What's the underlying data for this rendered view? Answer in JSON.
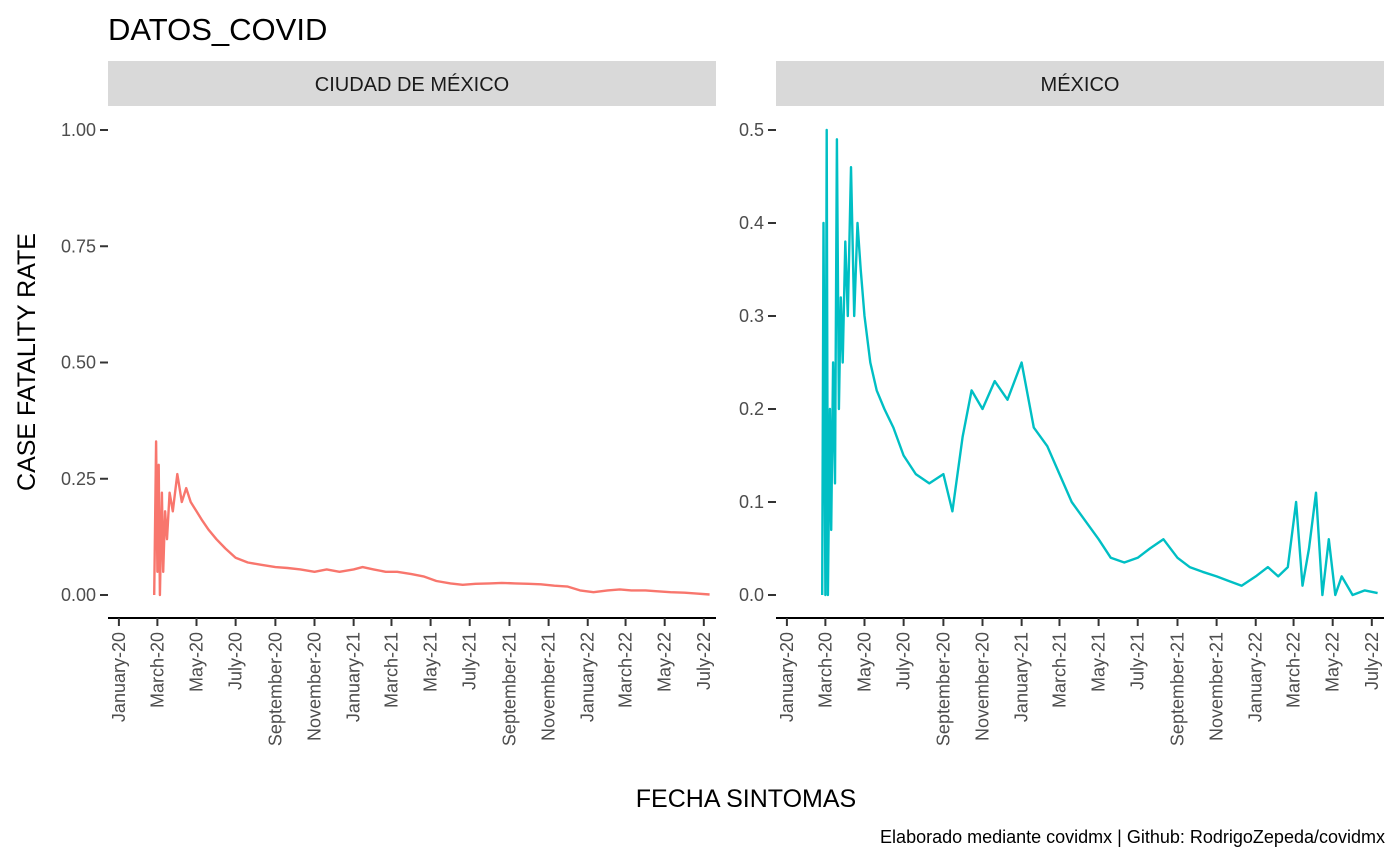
{
  "title": "DATOS_COVID",
  "caption": "Elaborado mediante covidmx | Github: RodrigoZepeda/covidmx",
  "chart_data": {
    "type": "line",
    "title": "DATOS_COVID",
    "xlabel": "FECHA SINTOMAS",
    "ylabel": "CASE FATALITY RATE",
    "grid": false,
    "legend": "none",
    "x_ticks": [
      "January-20",
      "March-20",
      "May-20",
      "July-20",
      "September-20",
      "November-20",
      "January-21",
      "March-21",
      "May-21",
      "July-21",
      "September-21",
      "November-21",
      "January-22",
      "March-22",
      "May-22",
      "July-22"
    ],
    "xlim": [
      "2019-12-15",
      "2022-07-20"
    ],
    "panels": [
      {
        "strip": "CIUDAD DE MÉXICO",
        "color": "#F8766D",
        "ylim": [
          0,
          1.0
        ],
        "y_ticks": [
          0,
          0.25,
          0.5,
          0.75,
          1.0
        ],
        "y_tick_labels": [
          "0.00",
          "0.25",
          "0.50",
          "0.75",
          "1.00"
        ],
        "series": {
          "x": [
            "2020-02-25",
            "2020-02-28",
            "2020-03-01",
            "2020-03-03",
            "2020-03-05",
            "2020-03-08",
            "2020-03-10",
            "2020-03-13",
            "2020-03-16",
            "2020-03-20",
            "2020-03-25",
            "2020-04-01",
            "2020-04-08",
            "2020-04-15",
            "2020-04-22",
            "2020-05-01",
            "2020-05-10",
            "2020-05-20",
            "2020-06-01",
            "2020-06-15",
            "2020-07-01",
            "2020-07-20",
            "2020-08-10",
            "2020-09-01",
            "2020-09-20",
            "2020-10-10",
            "2020-11-01",
            "2020-11-20",
            "2020-12-10",
            "2021-01-01",
            "2021-01-15",
            "2021-02-01",
            "2021-02-20",
            "2021-03-10",
            "2021-04-01",
            "2021-04-20",
            "2021-05-10",
            "2021-06-01",
            "2021-06-20",
            "2021-07-10",
            "2021-08-01",
            "2021-08-20",
            "2021-09-10",
            "2021-10-01",
            "2021-10-20",
            "2021-11-10",
            "2021-12-01",
            "2021-12-20",
            "2022-01-10",
            "2022-02-01",
            "2022-02-20",
            "2022-03-10",
            "2022-04-01",
            "2022-04-20",
            "2022-05-10",
            "2022-06-01",
            "2022-06-20",
            "2022-07-10"
          ],
          "y": [
            0.0,
            0.33,
            0.05,
            0.28,
            0.0,
            0.22,
            0.05,
            0.18,
            0.12,
            0.22,
            0.18,
            0.26,
            0.2,
            0.23,
            0.2,
            0.18,
            0.16,
            0.14,
            0.12,
            0.1,
            0.08,
            0.07,
            0.065,
            0.06,
            0.058,
            0.055,
            0.05,
            0.055,
            0.05,
            0.055,
            0.06,
            0.055,
            0.05,
            0.05,
            0.045,
            0.04,
            0.03,
            0.025,
            0.022,
            0.024,
            0.025,
            0.026,
            0.025,
            0.024,
            0.023,
            0.02,
            0.018,
            0.01,
            0.006,
            0.01,
            0.012,
            0.01,
            0.01,
            0.008,
            0.006,
            0.005,
            0.003,
            0.001
          ]
        }
      },
      {
        "strip": "MÉXICO",
        "color": "#00BFC4",
        "ylim": [
          0,
          0.5
        ],
        "y_ticks": [
          0,
          0.1,
          0.2,
          0.3,
          0.4,
          0.5
        ],
        "y_tick_labels": [
          "0.0",
          "0.1",
          "0.2",
          "0.3",
          "0.4",
          "0.5"
        ],
        "series": {
          "x": [
            "2020-02-25",
            "2020-02-27",
            "2020-03-01",
            "2020-03-03",
            "2020-03-05",
            "2020-03-08",
            "2020-03-10",
            "2020-03-13",
            "2020-03-16",
            "2020-03-19",
            "2020-03-22",
            "2020-03-25",
            "2020-03-28",
            "2020-04-01",
            "2020-04-05",
            "2020-04-10",
            "2020-04-15",
            "2020-04-20",
            "2020-04-25",
            "2020-05-01",
            "2020-05-10",
            "2020-05-20",
            "2020-06-01",
            "2020-06-15",
            "2020-07-01",
            "2020-07-20",
            "2020-08-10",
            "2020-09-01",
            "2020-09-15",
            "2020-10-01",
            "2020-10-15",
            "2020-11-01",
            "2020-11-20",
            "2020-12-10",
            "2021-01-01",
            "2021-01-20",
            "2021-02-10",
            "2021-03-01",
            "2021-03-20",
            "2021-04-10",
            "2021-05-01",
            "2021-05-20",
            "2021-06-10",
            "2021-07-01",
            "2021-07-20",
            "2021-08-10",
            "2021-09-01",
            "2021-09-20",
            "2021-10-10",
            "2021-11-01",
            "2021-11-20",
            "2021-12-10",
            "2022-01-01",
            "2022-01-20",
            "2022-02-05",
            "2022-02-20",
            "2022-03-05",
            "2022-03-15",
            "2022-03-25",
            "2022-04-05",
            "2022-04-15",
            "2022-04-25",
            "2022-05-05",
            "2022-05-15",
            "2022-06-01",
            "2022-06-20",
            "2022-07-10"
          ],
          "y": [
            0.0,
            0.4,
            0.0,
            0.5,
            0.0,
            0.2,
            0.07,
            0.25,
            0.12,
            0.49,
            0.2,
            0.32,
            0.25,
            0.38,
            0.3,
            0.46,
            0.3,
            0.4,
            0.35,
            0.3,
            0.25,
            0.22,
            0.2,
            0.18,
            0.15,
            0.13,
            0.12,
            0.13,
            0.09,
            0.17,
            0.22,
            0.2,
            0.23,
            0.21,
            0.25,
            0.18,
            0.16,
            0.13,
            0.1,
            0.08,
            0.06,
            0.04,
            0.035,
            0.04,
            0.05,
            0.06,
            0.04,
            0.03,
            0.025,
            0.02,
            0.015,
            0.01,
            0.02,
            0.03,
            0.02,
            0.03,
            0.1,
            0.01,
            0.05,
            0.11,
            0.0,
            0.06,
            0.0,
            0.02,
            0.0,
            0.005,
            0.002
          ]
        }
      }
    ]
  }
}
